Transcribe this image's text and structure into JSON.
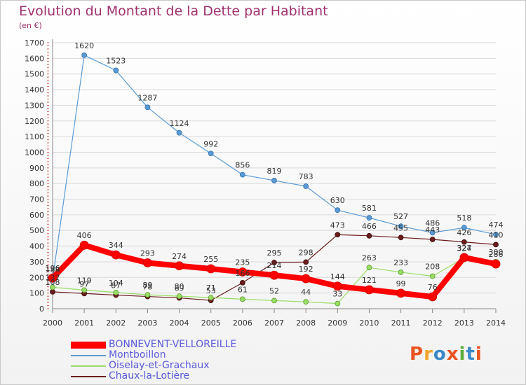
{
  "header": {
    "title": "Evolution du Montant de la Dette par Habitant",
    "subtitle": "(en €)"
  },
  "logo": {
    "text": "Proxiti",
    "colors": [
      "#e8531f",
      "#f1a52b",
      "#3a89c9",
      "#e8531f",
      "#5cad3a",
      "#3a89c9",
      "#e8531f"
    ]
  },
  "chart_data": {
    "type": "line",
    "title": "Evolution du Montant de la Dette par Habitant",
    "ylabel": "(en €)",
    "xlabel": "",
    "ylim": [
      0,
      1700
    ],
    "yticks": [
      0,
      100,
      200,
      300,
      400,
      500,
      600,
      700,
      800,
      900,
      1000,
      1100,
      1200,
      1300,
      1400,
      1500,
      1600,
      1700
    ],
    "grid": "horizontal",
    "legend_position": "bottom-left",
    "categories": [
      "2000",
      "2001",
      "2002",
      "2003",
      "2004",
      "2005",
      "2006",
      "2007",
      "2008",
      "2009",
      "2010",
      "2011",
      "2012",
      "2013",
      "2014"
    ],
    "series": [
      {
        "name": "BONNEVENT-VELLOREILLE",
        "color": "#ff0000",
        "values": [
          196,
          406,
          344,
          293,
          274,
          255,
          235,
          214,
          192,
          144,
          121,
          99,
          76,
          327,
          286
        ]
      },
      {
        "name": "Montboillon",
        "color": "#5b9bd5",
        "values": [
          188,
          1620,
          1523,
          1287,
          1124,
          992,
          856,
          819,
          783,
          630,
          581,
          527,
          486,
          518,
          474
        ]
      },
      {
        "name": "Oiselay-et-Grachaux",
        "color": "#99dd66",
        "values": [
          137,
          119,
          104,
          89,
          80,
          71,
          61,
          52,
          44,
          33,
          263,
          233,
          208,
          324,
          300
        ]
      },
      {
        "name": "Chaux-la-Lotière",
        "color": "#6b1c1c",
        "values": [
          108,
          97,
          87,
          78,
          69,
          53,
          166,
          295,
          298,
          473,
          466,
          455,
          443,
          426,
          410
        ]
      }
    ]
  }
}
